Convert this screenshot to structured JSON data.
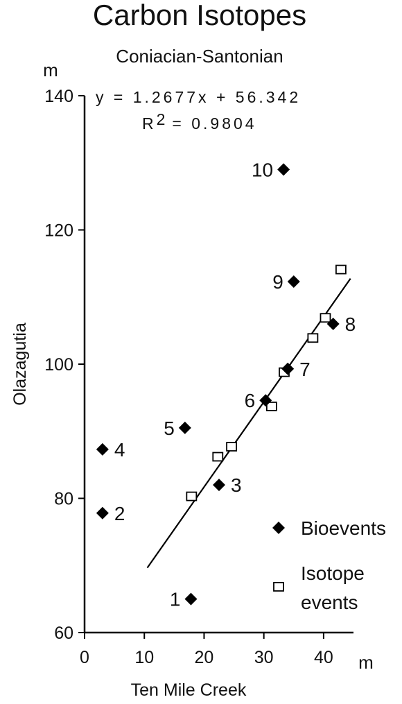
{
  "chart_data": {
    "type": "scatter",
    "title": "Carbon Isotopes",
    "subtitle": "Coniacian-Santonian",
    "xlabel": "Ten Mile Creek",
    "ylabel": "Olazagutia",
    "x_unit": "m",
    "y_unit": "m",
    "xlim": [
      0,
      45
    ],
    "ylim": [
      60,
      140
    ],
    "x_ticks": [
      "0",
      "10",
      "20",
      "30",
      "40"
    ],
    "y_ticks": [
      "60",
      "80",
      "100",
      "120",
      "140"
    ],
    "equation": "y = 1.2677x + 56.342",
    "r_squared_prefix": "R",
    "r_squared_sup": "2",
    "r_squared_value": "= 0.9804",
    "fit": {
      "slope": 1.2677,
      "intercept": 56.342,
      "x_range": [
        10.5,
        44.5
      ]
    },
    "legend": {
      "position": "bottom-right",
      "bioevents_label": "Bioevents",
      "isotope_label_line1": "Isotope",
      "isotope_label_line2": "events"
    },
    "series": [
      {
        "name": "Bioevents",
        "marker": "filled-diamond",
        "points": [
          {
            "label": "1",
            "x": 17.8,
            "y": 65.0
          },
          {
            "label": "2",
            "x": 3.0,
            "y": 77.8
          },
          {
            "label": "3",
            "x": 22.5,
            "y": 82.0
          },
          {
            "label": "4",
            "x": 3.0,
            "y": 87.3
          },
          {
            "label": "5",
            "x": 16.8,
            "y": 90.5
          },
          {
            "label": "6",
            "x": 30.3,
            "y": 94.6
          },
          {
            "label": "7",
            "x": 34.0,
            "y": 99.3
          },
          {
            "label": "8",
            "x": 41.6,
            "y": 106.0
          },
          {
            "label": "9",
            "x": 35.0,
            "y": 112.3
          },
          {
            "label": "10",
            "x": 33.3,
            "y": 129.0
          }
        ]
      },
      {
        "name": "Isotope events",
        "marker": "open-square",
        "points": [
          {
            "x": 17.9,
            "y": 80.3
          },
          {
            "x": 22.3,
            "y": 86.2
          },
          {
            "x": 24.6,
            "y": 87.7
          },
          {
            "x": 31.3,
            "y": 93.7
          },
          {
            "x": 33.4,
            "y": 98.8
          },
          {
            "x": 38.2,
            "y": 103.9
          },
          {
            "x": 40.3,
            "y": 106.9
          },
          {
            "x": 42.9,
            "y": 114.1
          }
        ]
      }
    ]
  }
}
